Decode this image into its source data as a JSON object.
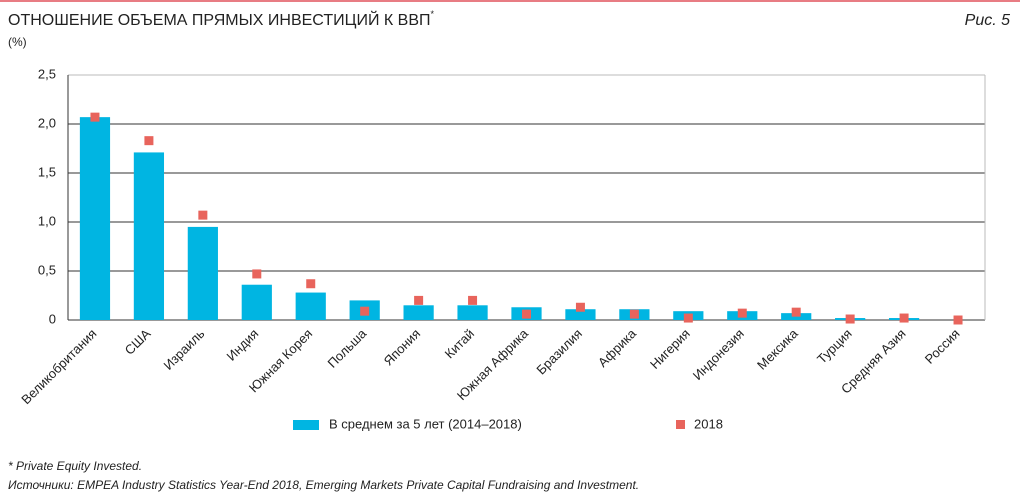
{
  "chart_data": {
    "type": "bar",
    "title": "ОТНОШЕНИЕ ОБЪЕМА ПРЯМЫХ ИНВЕСТИЦИЙ К ВВП",
    "title_note": "*",
    "figure_label": "Рис. 5",
    "y_label": "(%)",
    "categories": [
      "Великобритания",
      "США",
      "Израиль",
      "Индия",
      "Южная Корея",
      "Польша",
      "Япония",
      "Китай",
      "Южная Африка",
      "Бразилия",
      "Африка",
      "Нигерия",
      "Индонезия",
      "Мексика",
      "Турция",
      "Средняя Азия",
      "Россия"
    ],
    "series": [
      {
        "name": "В среднем за 5 лет (2014–2018)",
        "color": "#00b5e2",
        "mark": "bar",
        "values": [
          2.07,
          1.71,
          0.95,
          0.36,
          0.28,
          0.2,
          0.15,
          0.15,
          0.13,
          0.11,
          0.11,
          0.09,
          0.09,
          0.07,
          0.02,
          0.02,
          0
        ]
      },
      {
        "name": "2018",
        "color": "#e8645c",
        "mark": "square",
        "values": [
          2.07,
          1.83,
          1.07,
          0.47,
          0.37,
          0.09,
          0.2,
          0.2,
          0.06,
          0.13,
          0.06,
          0.02,
          0.07,
          0.08,
          0.01,
          0.02,
          0
        ]
      }
    ],
    "ylim": [
      0,
      2.5
    ],
    "yticks": [
      0,
      {
        "value": 0.5,
        "label": "0,5"
      },
      {
        "value": 1,
        "label": "1,0"
      },
      {
        "value": 1.5,
        "label": "1,5"
      },
      {
        "value": 2,
        "label": "2,0"
      },
      {
        "value": 2.5,
        "label": "2,5"
      }
    ],
    "grid": true,
    "footnotes": [
      "* Private Equity Invested.",
      "Источники:  EMPEA Industry Statistics Year-End 2018, Emerging Markets Private Capital Fundraising and Investment."
    ]
  }
}
